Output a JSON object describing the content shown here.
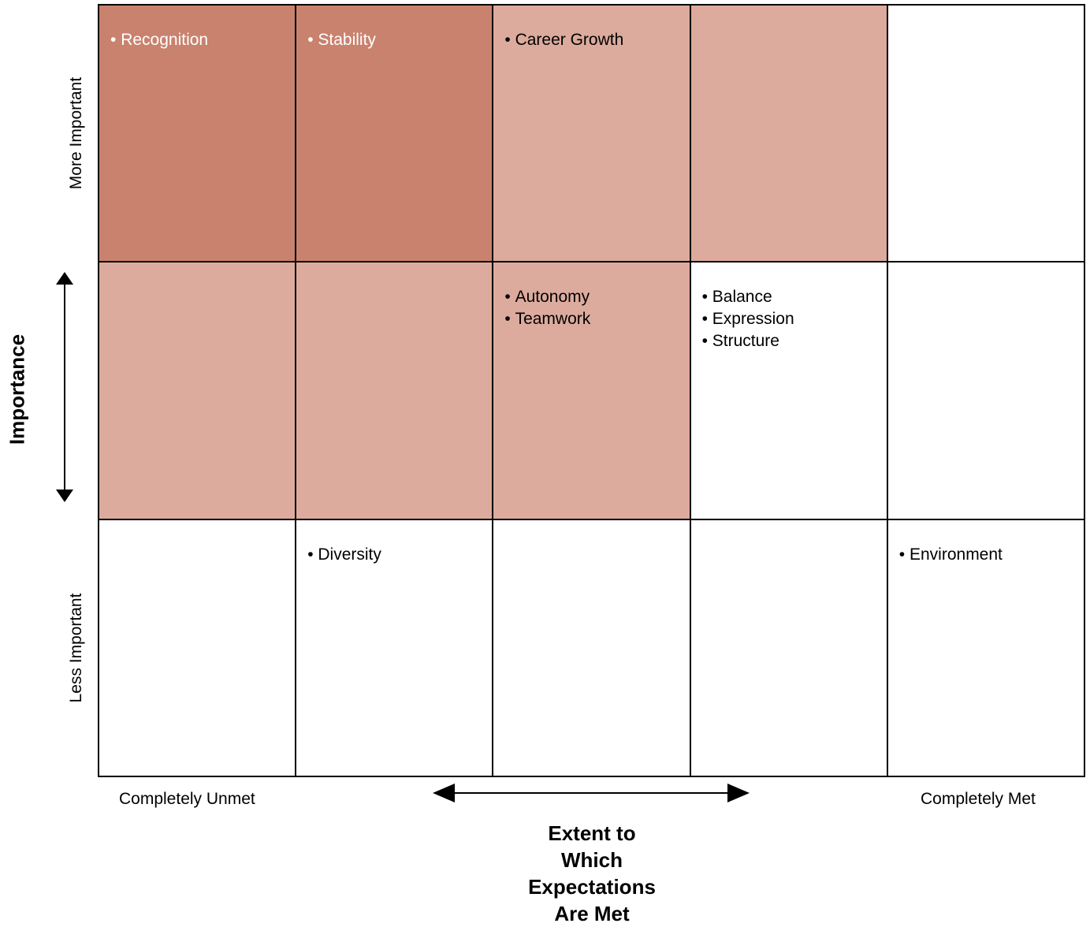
{
  "diagram": {
    "y_axis": {
      "title": "Importance",
      "top_label": "More Important",
      "bottom_label": "Less Important"
    },
    "x_axis": {
      "title_lines": [
        "Extent to",
        "Which",
        "Expectations",
        "Are Met"
      ],
      "left_label": "Completely Unmet",
      "right_label": "Completely Met"
    },
    "colors": {
      "dark": "#c9826e",
      "light": "#dcab9d",
      "white": "#ffffff"
    },
    "rows": [
      {
        "cells": [
          {
            "shade": "dark",
            "items": [
              "Recognition"
            ]
          },
          {
            "shade": "dark",
            "items": [
              "Stability"
            ]
          },
          {
            "shade": "light",
            "items": [
              "Career Growth"
            ]
          },
          {
            "shade": "light",
            "items": []
          },
          {
            "shade": "white",
            "items": []
          }
        ]
      },
      {
        "cells": [
          {
            "shade": "light",
            "items": []
          },
          {
            "shade": "light",
            "items": []
          },
          {
            "shade": "light",
            "items": [
              "Autonomy",
              "Teamwork"
            ]
          },
          {
            "shade": "white",
            "items": [
              "Balance",
              "Expression",
              "Structure"
            ]
          },
          {
            "shade": "white",
            "items": []
          }
        ]
      },
      {
        "cells": [
          {
            "shade": "white",
            "items": []
          },
          {
            "shade": "white",
            "items": [
              "Diversity"
            ]
          },
          {
            "shade": "white",
            "items": []
          },
          {
            "shade": "white",
            "items": []
          },
          {
            "shade": "white",
            "items": [
              "Environment"
            ]
          }
        ]
      }
    ]
  }
}
